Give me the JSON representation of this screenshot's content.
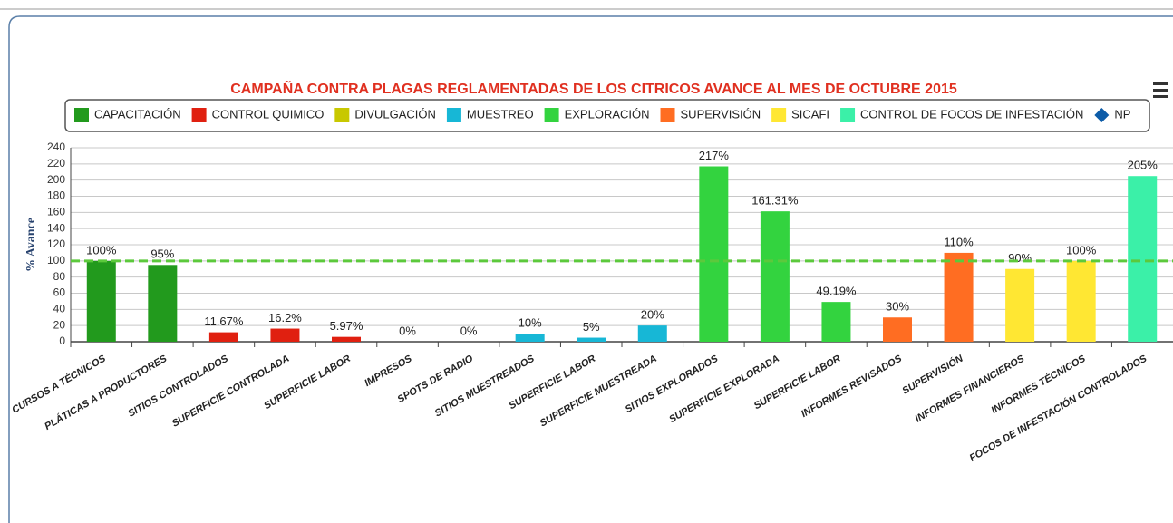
{
  "chart_data": {
    "type": "bar",
    "title": "CAMPAÑA CONTRA PLAGAS REGLAMENTADAS DE LOS CITRICOS AVANCE AL MES DE OCTUBRE 2015",
    "y_label": "% Avance",
    "categories": [
      "CURSOS A TÉCNICOS",
      "PLÁTICAS A PRODUCTORES",
      "SITIOS CONTROLADOS",
      "SUPERFICIE CONTROLADA",
      "SUPERFICIE LABOR",
      "IMPRESOS",
      "SPOTS DE RADIO",
      "SITIOS MUESTREADOS",
      "SUPERFICIE LABOR",
      "SUPERFICIE MUESTREADA",
      "SITIOS EXPLORADOS",
      "SUPERFICIE EXPLORADA",
      "SUPERFICIE LABOR",
      "INFORMES REVISADOS",
      "SUPERVISIÓN",
      "INFORMES FINANCIEROS",
      "INFORMES TÉCNICOS",
      "FOCOS DE INFESTACIÓN CONTROLADOS"
    ],
    "series": [
      {
        "name": "CAPACITACIÓN",
        "color": "#229a1d",
        "values": [
          100,
          95,
          null,
          null,
          null,
          null,
          null,
          null,
          null,
          null,
          null,
          null,
          null,
          null,
          null,
          null,
          null,
          null
        ],
        "value_labels": [
          "100%",
          "95%",
          null,
          null,
          null,
          null,
          null,
          null,
          null,
          null,
          null,
          null,
          null,
          null,
          null,
          null,
          null,
          null
        ]
      },
      {
        "name": "CONTROL QUIMICO",
        "color": "#e02010",
        "values": [
          null,
          null,
          11.67,
          16.2,
          5.97,
          null,
          null,
          null,
          null,
          null,
          null,
          null,
          null,
          null,
          null,
          null,
          null,
          null
        ],
        "value_labels": [
          null,
          null,
          "11.67%",
          "16.2%",
          "5.97%",
          null,
          null,
          null,
          null,
          null,
          null,
          null,
          null,
          null,
          null,
          null,
          null,
          null
        ]
      },
      {
        "name": "DIVULGACIÓN",
        "color": "#c8c800",
        "values": [
          null,
          null,
          null,
          null,
          null,
          0,
          0,
          null,
          null,
          null,
          null,
          null,
          null,
          null,
          null,
          null,
          null,
          null
        ],
        "value_labels": [
          null,
          null,
          null,
          null,
          null,
          "0%",
          "0%",
          null,
          null,
          null,
          null,
          null,
          null,
          null,
          null,
          null,
          null,
          null
        ]
      },
      {
        "name": "MUESTREO",
        "color": "#17b7d6",
        "values": [
          null,
          null,
          null,
          null,
          null,
          null,
          null,
          10,
          5,
          20,
          null,
          null,
          null,
          null,
          null,
          null,
          null,
          null
        ],
        "value_labels": [
          null,
          null,
          null,
          null,
          null,
          null,
          null,
          "10%",
          "5%",
          "20%",
          null,
          null,
          null,
          null,
          null,
          null,
          null,
          null
        ]
      },
      {
        "name": "EXPLORACIÓN",
        "color": "#33d33f",
        "values": [
          null,
          null,
          null,
          null,
          null,
          null,
          null,
          null,
          null,
          null,
          217,
          161.31,
          49.19,
          null,
          null,
          null,
          null,
          null
        ],
        "value_labels": [
          null,
          null,
          null,
          null,
          null,
          null,
          null,
          null,
          null,
          null,
          "217%",
          "161.31%",
          "49.19%",
          null,
          null,
          null,
          null,
          null
        ]
      },
      {
        "name": "SUPERVISIÓN",
        "color": "#ff6d22",
        "values": [
          null,
          null,
          null,
          null,
          null,
          null,
          null,
          null,
          null,
          null,
          null,
          null,
          null,
          30,
          110,
          null,
          null,
          null
        ],
        "value_labels": [
          null,
          null,
          null,
          null,
          null,
          null,
          null,
          null,
          null,
          null,
          null,
          null,
          null,
          "30%",
          "110%",
          null,
          null,
          null
        ]
      },
      {
        "name": "SICAFI",
        "color": "#ffe733",
        "values": [
          null,
          null,
          null,
          null,
          null,
          null,
          null,
          null,
          null,
          null,
          null,
          null,
          null,
          null,
          null,
          90,
          100,
          null
        ],
        "value_labels": [
          null,
          null,
          null,
          null,
          null,
          null,
          null,
          null,
          null,
          null,
          null,
          null,
          null,
          null,
          null,
          "90%",
          "100%",
          null
        ]
      },
      {
        "name": "CONTROL DE FOCOS DE INFESTACIÓN",
        "color": "#3bf0a8",
        "values": [
          null,
          null,
          null,
          null,
          null,
          null,
          null,
          null,
          null,
          null,
          null,
          null,
          null,
          null,
          null,
          null,
          null,
          205
        ],
        "value_labels": [
          null,
          null,
          null,
          null,
          null,
          null,
          null,
          null,
          null,
          null,
          null,
          null,
          null,
          null,
          null,
          null,
          null,
          "205%"
        ]
      },
      {
        "name": "NP",
        "color": "#0d5ca8",
        "marker": "diamond",
        "values": [
          null,
          null,
          null,
          null,
          null,
          null,
          null,
          null,
          null,
          null,
          null,
          null,
          null,
          null,
          null,
          null,
          null,
          null
        ]
      }
    ],
    "reference_line": {
      "value": 100,
      "color": "#5cc93c"
    },
    "ylim": [
      0,
      240
    ],
    "yticks": [
      0,
      20,
      40,
      60,
      80,
      100,
      120,
      140,
      160,
      180,
      200,
      220,
      240
    ],
    "grid": true
  }
}
